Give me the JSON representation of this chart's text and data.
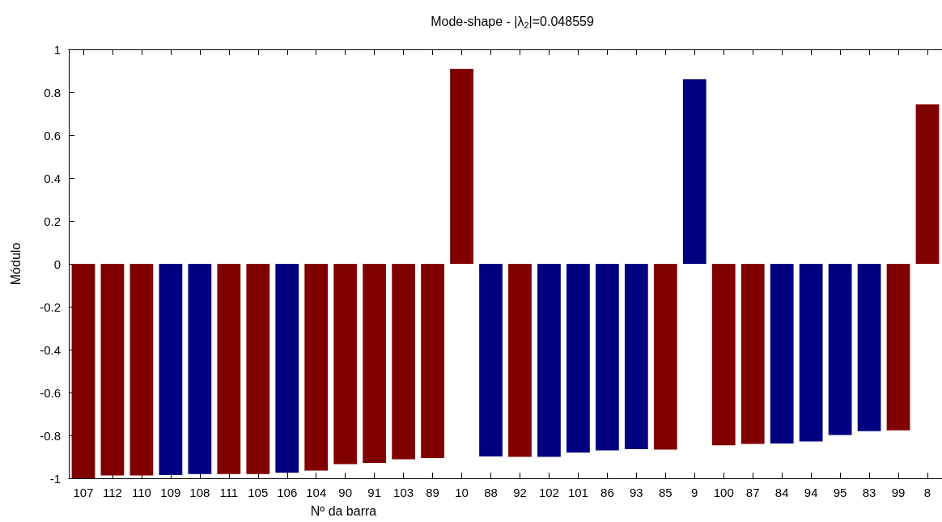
{
  "chart_data": {
    "type": "bar",
    "title": "Mode-shape - |λ$_{2}$|=0.048559",
    "xlabel": "Nº da barra",
    "ylabel": "Módulo",
    "categories": [
      "107",
      "112",
      "110",
      "109",
      "108",
      "111",
      "105",
      "106",
      "104",
      "90",
      "91",
      "103",
      "89",
      "10",
      "88",
      "92",
      "102",
      "101",
      "86",
      "93",
      "85",
      "9",
      "100",
      "87",
      "84",
      "94",
      "95",
      "83",
      "99",
      "8"
    ],
    "values": [
      -1.0,
      -0.987,
      -0.987,
      -0.985,
      -0.98,
      -0.98,
      -0.98,
      -0.974,
      -0.964,
      -0.934,
      -0.928,
      -0.911,
      -0.906,
      0.909,
      -0.898,
      -0.9,
      -0.9,
      -0.88,
      -0.87,
      -0.864,
      -0.866,
      0.86,
      -0.846,
      -0.84,
      -0.838,
      -0.828,
      -0.798,
      -0.78,
      -0.776,
      0.743
    ],
    "colors": [
      "#800000",
      "#800000",
      "#800000",
      "#000080",
      "#000080",
      "#800000",
      "#800000",
      "#000080",
      "#800000",
      "#800000",
      "#800000",
      "#800000",
      "#800000",
      "#800000",
      "#000080",
      "#800000",
      "#000080",
      "#000080",
      "#000080",
      "#000080",
      "#800000",
      "#000080",
      "#800000",
      "#800000",
      "#000080",
      "#000080",
      "#000080",
      "#000080",
      "#800000",
      "#800000"
    ],
    "ylim": [
      -1,
      1
    ],
    "yticks": [
      -1,
      -0.8,
      -0.6,
      -0.4,
      -0.2,
      0,
      0.2,
      0.4,
      0.6,
      0.8,
      1
    ]
  }
}
